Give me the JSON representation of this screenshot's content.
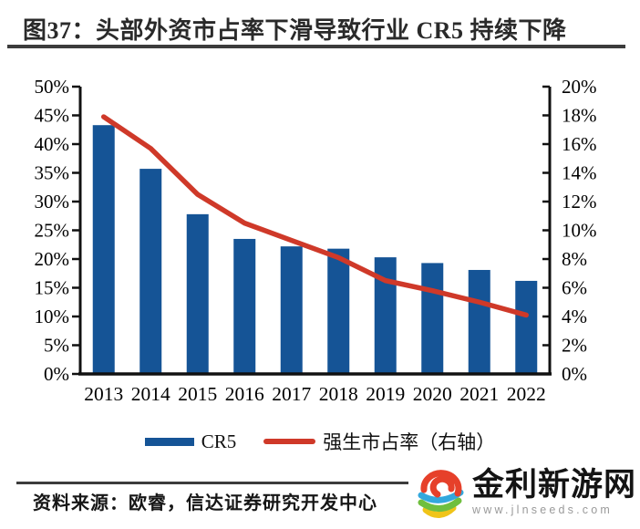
{
  "title": {
    "text": "图37：头部外资市占率下滑导致行业 CR5 持续下降"
  },
  "chart_data": {
    "type": "bar",
    "title": "头部外资市占率下滑导致行业 CR5 持续下降",
    "categories": [
      "2013",
      "2014",
      "2015",
      "2016",
      "2017",
      "2018",
      "2019",
      "2020",
      "2021",
      "2022"
    ],
    "series": [
      {
        "name": "CR5",
        "type": "bar",
        "axis": "left",
        "color": "#155496",
        "values": [
          43.3,
          35.7,
          27.8,
          23.5,
          22.2,
          21.8,
          20.3,
          19.3,
          18.1,
          16.2
        ]
      },
      {
        "name": "强生市占率（右轴）",
        "type": "line",
        "axis": "right",
        "color": "#cf3929",
        "values": [
          17.9,
          15.7,
          12.5,
          10.5,
          9.3,
          8.1,
          6.5,
          5.8,
          5.0,
          4.1
        ]
      }
    ],
    "left_axis": {
      "min": 0,
      "max": 50,
      "step": 5,
      "tick_suffix": "%"
    },
    "right_axis": {
      "min": 0,
      "max": 20,
      "step": 2,
      "tick_suffix": "%"
    },
    "grid": false,
    "legend_position": "bottom",
    "xlabel": "",
    "ylabel": ""
  },
  "footer": {
    "source_text": "资料来源：欧睿，信达证券研究开发中心"
  },
  "logo": {
    "name": "金利新游网",
    "url_text": "www.jlnseeds.com",
    "icon": "e-swirl-icon",
    "colors": {
      "red": "#e6402a",
      "blue": "#33a8dd",
      "green": "#6fbf3e",
      "yellow": "#f0c419"
    }
  }
}
